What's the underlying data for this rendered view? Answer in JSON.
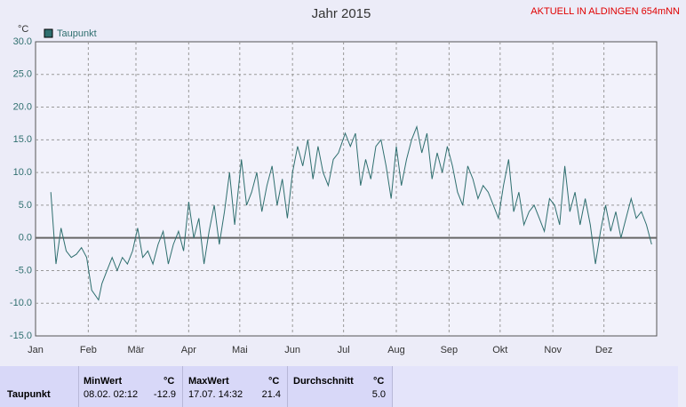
{
  "chart_data": {
    "type": "line",
    "title": "Jahr 2015",
    "annotation": "AKTUELL IN ALDINGEN 654mNN",
    "y_label": "°C",
    "x": [
      9,
      12,
      15,
      18,
      21,
      24,
      27,
      30,
      33,
      37,
      39,
      42,
      45,
      48,
      51,
      54,
      57,
      60,
      63,
      66,
      69,
      72,
      75,
      78,
      81,
      84,
      87,
      90,
      93,
      96,
      99,
      102,
      105,
      108,
      111,
      114,
      117,
      121,
      124,
      127,
      130,
      133,
      136,
      139,
      142,
      145,
      148,
      151,
      154,
      157,
      160,
      163,
      166,
      169,
      172,
      175,
      178,
      182,
      185,
      188,
      191,
      194,
      197,
      200,
      203,
      206,
      209,
      212,
      215,
      218,
      221,
      224,
      227,
      230,
      233,
      236,
      239,
      242,
      245,
      248,
      251,
      254,
      257,
      260,
      263,
      266,
      269,
      272,
      275,
      278,
      281,
      284,
      287,
      290,
      293,
      296,
      299,
      302,
      305,
      308,
      311,
      314,
      317,
      320,
      323,
      326,
      329,
      332,
      335,
      338,
      341,
      344,
      347,
      350,
      353,
      356,
      359,
      362
    ],
    "xlim": [
      0,
      365
    ],
    "xticks": [
      {
        "value": 0,
        "label": "Jan"
      },
      {
        "value": 31,
        "label": "Feb"
      },
      {
        "value": 59,
        "label": "Mär"
      },
      {
        "value": 90,
        "label": "Apr"
      },
      {
        "value": 120,
        "label": "Mai"
      },
      {
        "value": 151,
        "label": "Jun"
      },
      {
        "value": 181,
        "label": "Jul"
      },
      {
        "value": 212,
        "label": "Aug"
      },
      {
        "value": 243,
        "label": "Sep"
      },
      {
        "value": 273,
        "label": "Okt"
      },
      {
        "value": 304,
        "label": "Nov"
      },
      {
        "value": 334,
        "label": "Dez"
      }
    ],
    "ylim": [
      -15,
      30
    ],
    "yticks": [
      {
        "value": 30,
        "label": "30.0"
      },
      {
        "value": 25,
        "label": "25.0"
      },
      {
        "value": 20,
        "label": "20.0"
      },
      {
        "value": 15,
        "label": "15.0"
      },
      {
        "value": 10,
        "label": "10.0"
      },
      {
        "value": 5,
        "label": "5.0"
      },
      {
        "value": 0,
        "label": "0.0"
      },
      {
        "value": -5,
        "label": "-5.0"
      },
      {
        "value": -10,
        "label": "-10.0"
      },
      {
        "value": -15,
        "label": "-15.0"
      }
    ],
    "grid": true,
    "series": [
      {
        "name": "Taupunkt",
        "color": "#2f6f6f",
        "values": [
          7,
          -4,
          1.5,
          -2,
          -3,
          -2.5,
          -1.5,
          -3,
          -8,
          -9.5,
          -7,
          -5,
          -3,
          -5,
          -3,
          -4,
          -2,
          1.5,
          -3,
          -2,
          -4,
          -1,
          1,
          -4,
          -1,
          1,
          -2,
          5.5,
          0,
          3,
          -4,
          1,
          5,
          -1,
          4,
          10,
          2,
          12,
          5,
          7,
          10,
          4,
          8,
          11,
          5,
          9,
          3,
          10,
          14,
          11,
          15,
          9,
          14,
          10,
          8,
          12,
          13,
          16,
          14,
          16,
          8,
          12,
          9,
          14,
          15,
          11,
          6,
          14,
          8,
          12,
          15,
          17,
          13,
          16,
          9,
          13,
          10,
          14,
          11,
          7,
          5,
          11,
          9,
          6,
          8,
          7,
          5,
          3,
          8,
          12,
          4,
          7,
          2,
          4,
          5,
          3,
          1,
          6,
          5,
          2,
          11,
          4,
          7,
          2,
          6,
          2,
          -4,
          1,
          5,
          1,
          4,
          0,
          3,
          6,
          3,
          4,
          2,
          -1
        ]
      }
    ]
  },
  "table": {
    "columns": [
      {
        "title": "MinWert",
        "unit": "°C"
      },
      {
        "title": "MaxWert",
        "unit": "°C"
      },
      {
        "title": "Durchschnitt",
        "unit": "°C"
      }
    ],
    "rows": [
      {
        "label": "Taupunkt",
        "cells": [
          {
            "time": "08.02. 02:12",
            "value": "-12.9"
          },
          {
            "time": "17.07. 14:32",
            "value": "21.4"
          },
          {
            "value": "5.0"
          }
        ]
      }
    ]
  }
}
